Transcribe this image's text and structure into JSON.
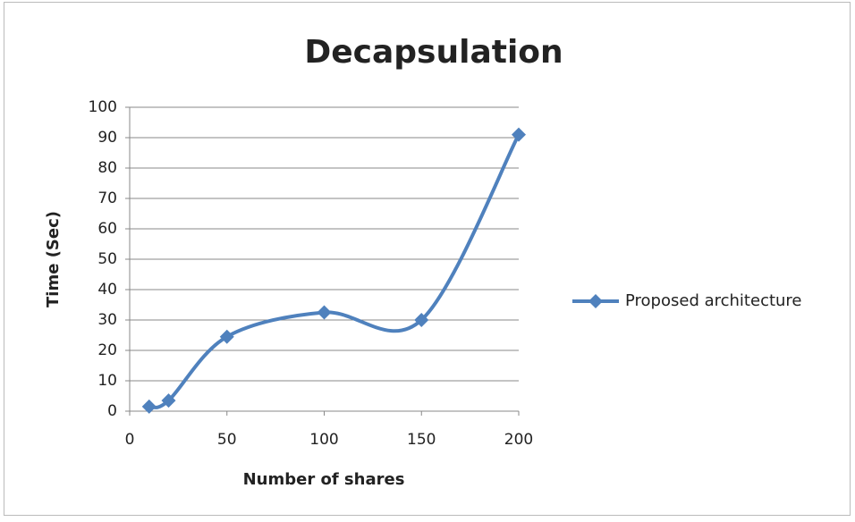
{
  "chart_data": {
    "type": "line",
    "title": "Decapsulation",
    "x_label": "Number of shares",
    "y_label": "Time (Sec)",
    "x": [
      10,
      20,
      50,
      100,
      150,
      200
    ],
    "series": [
      {
        "name": "Proposed architecture",
        "color": "#4f81bd",
        "values": [
          1.5,
          3.5,
          24.5,
          32.5,
          30,
          91
        ]
      }
    ],
    "xlim": [
      0,
      200
    ],
    "xticks": [
      0,
      50,
      100,
      150,
      200
    ],
    "ylim": [
      0,
      100
    ],
    "yticks": [
      0,
      10,
      20,
      30,
      40,
      50,
      60,
      70,
      80,
      90,
      100
    ],
    "grid": true,
    "smooth": true,
    "legend": "right"
  }
}
